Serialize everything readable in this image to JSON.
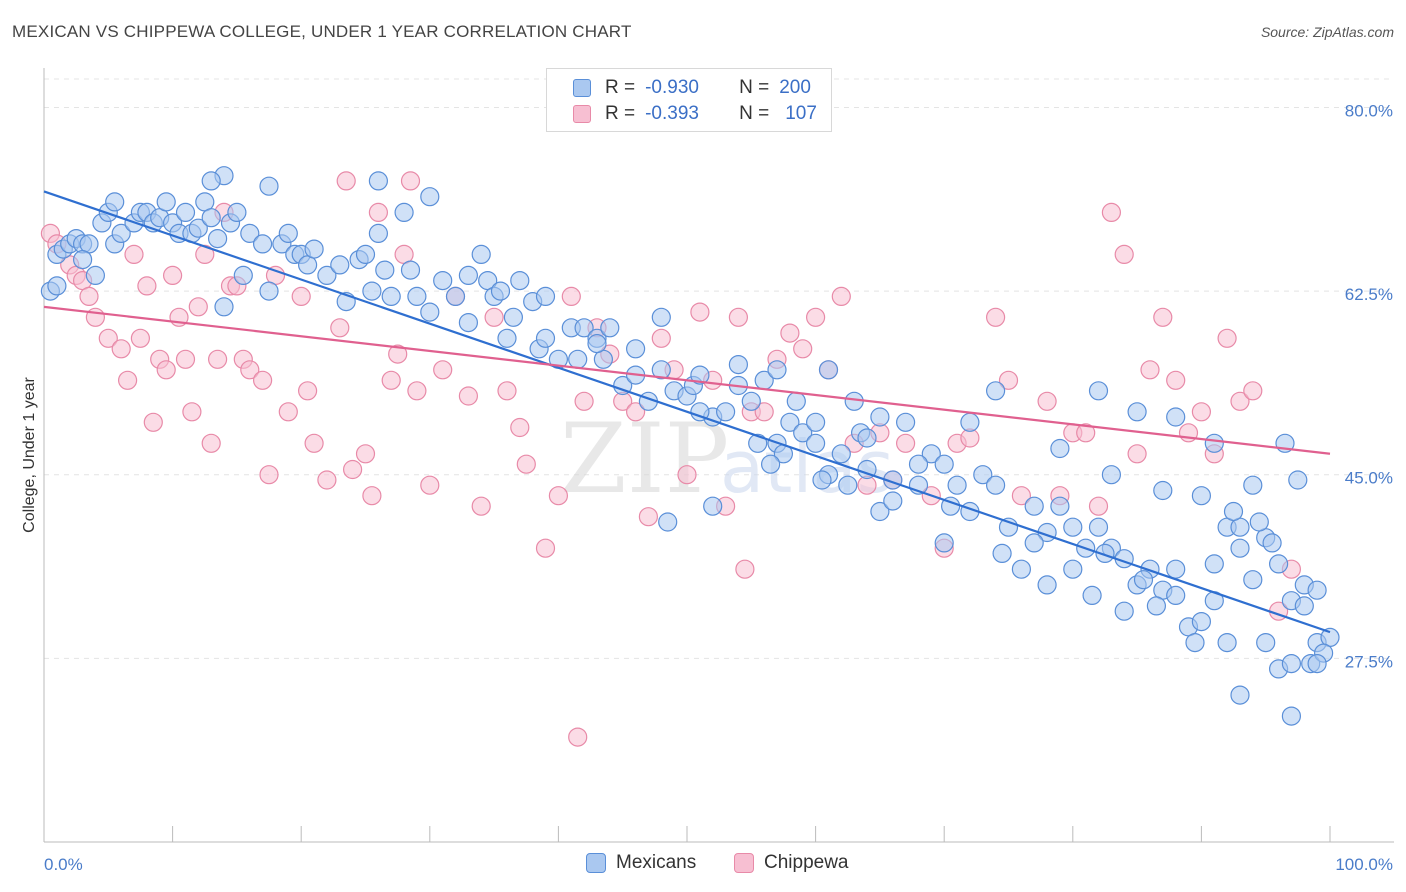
{
  "title": "MEXICAN VS CHIPPEWA COLLEGE, UNDER 1 YEAR CORRELATION CHART",
  "source": "Source: ZipAtlas.com",
  "legend": {
    "rows": [
      {
        "r_label": "R =",
        "r_value": "-0.930",
        "n_label": "N =",
        "n_value": "200"
      },
      {
        "r_label": "R =",
        "r_value": "-0.393",
        "n_label": "N =",
        "n_value": "107"
      }
    ]
  },
  "bottom_legend": [
    "Mexicans",
    "Chippewa"
  ],
  "colors": {
    "blue_fill": "#aac8f0",
    "blue_stroke": "#5a8fd8",
    "blue_line": "#2f6fd0",
    "pink_fill": "#f7bfd2",
    "pink_stroke": "#e88aa8",
    "pink_line": "#e0608f",
    "tick": "#4a7cc9",
    "grid": "#e4e4e4"
  },
  "chart_data": {
    "type": "scatter",
    "title": "MEXICAN VS CHIPPEWA COLLEGE, UNDER 1 YEAR CORRELATION CHART",
    "xlabel": "",
    "ylabel": "College, Under 1 year",
    "xlim": [
      0,
      100
    ],
    "ylim": [
      10,
      83
    ],
    "x_tick_labels": [
      "0.0%",
      "100.0%"
    ],
    "y_ticks": [
      27.5,
      45.0,
      62.5,
      80.0
    ],
    "y_tick_labels": [
      "27.5%",
      "45.0%",
      "62.5%",
      "80.0%"
    ],
    "grid": true,
    "watermark": "ZIPatlas",
    "series": [
      {
        "name": "Mexicans",
        "r": -0.93,
        "n": 200,
        "trend": {
          "x": [
            0,
            100
          ],
          "y": [
            72.0,
            30.0
          ]
        },
        "points": [
          [
            0.5,
            62.5
          ],
          [
            1,
            66
          ],
          [
            1.5,
            66.5
          ],
          [
            2,
            67
          ],
          [
            2.5,
            67.5
          ],
          [
            3,
            67
          ],
          [
            3.5,
            67
          ],
          [
            4,
            64
          ],
          [
            4.5,
            69
          ],
          [
            5,
            70
          ],
          [
            5.5,
            67
          ],
          [
            6,
            68
          ],
          [
            7,
            69
          ],
          [
            7.5,
            70
          ],
          [
            8,
            70
          ],
          [
            8.5,
            69
          ],
          [
            9,
            69.5
          ],
          [
            10,
            69
          ],
          [
            10.5,
            68
          ],
          [
            11,
            70
          ],
          [
            11.5,
            68
          ],
          [
            12,
            68.5
          ],
          [
            12.5,
            71
          ],
          [
            13,
            69.5
          ],
          [
            13.5,
            67.5
          ],
          [
            14,
            73.5
          ],
          [
            14.5,
            69
          ],
          [
            15,
            70
          ],
          [
            15.5,
            64
          ],
          [
            16,
            68
          ],
          [
            17,
            67
          ],
          [
            17.5,
            62.5
          ],
          [
            17.5,
            72.5
          ],
          [
            18.5,
            67
          ],
          [
            19,
            68
          ],
          [
            19.5,
            66
          ],
          [
            20,
            66
          ],
          [
            20.5,
            65
          ],
          [
            21,
            66.5
          ],
          [
            22,
            64
          ],
          [
            23,
            65
          ],
          [
            23.5,
            61.5
          ],
          [
            24.5,
            65.5
          ],
          [
            25,
            66
          ],
          [
            25.5,
            62.5
          ],
          [
            26,
            68
          ],
          [
            26.5,
            64.5
          ],
          [
            27,
            62
          ],
          [
            28,
            70
          ],
          [
            28.5,
            64.5
          ],
          [
            29,
            62
          ],
          [
            30,
            60.5
          ],
          [
            31,
            63.5
          ],
          [
            32,
            62
          ],
          [
            33,
            59.5
          ],
          [
            34,
            66
          ],
          [
            34.5,
            63.5
          ],
          [
            35,
            62
          ],
          [
            35.5,
            62.5
          ],
          [
            36.5,
            60
          ],
          [
            37,
            63.5
          ],
          [
            38,
            61.5
          ],
          [
            38.5,
            57
          ],
          [
            39,
            58
          ],
          [
            40,
            56
          ],
          [
            41,
            59
          ],
          [
            41.5,
            56
          ],
          [
            42,
            59
          ],
          [
            43,
            58
          ],
          [
            43.5,
            56
          ],
          [
            44,
            59
          ],
          [
            45,
            53.5
          ],
          [
            46,
            54.5
          ],
          [
            47,
            52
          ],
          [
            48,
            55
          ],
          [
            49,
            53
          ],
          [
            50,
            52.5
          ],
          [
            50.5,
            53.5
          ],
          [
            51,
            54.5
          ],
          [
            52,
            50.5
          ],
          [
            53,
            51
          ],
          [
            54,
            53.5
          ],
          [
            55,
            52
          ],
          [
            55.5,
            48
          ],
          [
            56,
            54
          ],
          [
            57,
            48
          ],
          [
            57.5,
            47
          ],
          [
            58,
            50
          ],
          [
            58.5,
            52
          ],
          [
            59,
            49
          ],
          [
            60,
            48
          ],
          [
            61,
            45
          ],
          [
            62,
            47
          ],
          [
            63,
            52
          ],
          [
            63.5,
            49
          ],
          [
            64,
            45.5
          ],
          [
            65,
            41.5
          ],
          [
            66,
            44.5
          ],
          [
            67,
            50
          ],
          [
            68,
            44
          ],
          [
            69,
            47
          ],
          [
            70,
            46
          ],
          [
            70.5,
            42
          ],
          [
            71,
            44
          ],
          [
            72,
            41.5
          ],
          [
            73,
            45
          ],
          [
            74,
            44
          ],
          [
            75,
            40
          ],
          [
            76,
            36
          ],
          [
            77,
            42
          ],
          [
            78,
            39.5
          ],
          [
            79,
            42
          ],
          [
            80,
            40
          ],
          [
            81,
            38
          ],
          [
            82,
            40
          ],
          [
            83,
            38
          ],
          [
            84,
            37
          ],
          [
            85,
            34.5
          ],
          [
            86,
            36
          ],
          [
            87,
            34
          ],
          [
            88,
            36
          ],
          [
            89,
            30.5
          ],
          [
            90,
            31
          ],
          [
            91,
            33
          ],
          [
            92,
            40
          ],
          [
            93,
            38
          ],
          [
            94,
            35
          ],
          [
            95,
            39
          ],
          [
            96,
            36.5
          ],
          [
            97,
            33
          ],
          [
            98,
            32.5
          ],
          [
            99,
            29
          ],
          [
            100,
            29.5
          ],
          [
            48.5,
            40.5
          ],
          [
            52,
            42
          ],
          [
            56.5,
            46
          ],
          [
            60.5,
            44.5
          ],
          [
            62.5,
            44
          ],
          [
            66,
            42.5
          ],
          [
            70,
            38.5
          ],
          [
            74.5,
            37.5
          ],
          [
            77,
            38.5
          ],
          [
            78,
            34.5
          ],
          [
            80,
            36
          ],
          [
            81.5,
            33.5
          ],
          [
            82.5,
            37.5
          ],
          [
            84,
            32
          ],
          [
            85.5,
            35
          ],
          [
            86.5,
            32.5
          ],
          [
            88,
            33.5
          ],
          [
            89.5,
            29
          ],
          [
            91,
            36.5
          ],
          [
            93,
            40
          ],
          [
            95,
            29
          ],
          [
            96,
            26.5
          ],
          [
            97,
            27
          ],
          [
            98.5,
            27
          ],
          [
            99.5,
            28
          ],
          [
            82,
            53
          ],
          [
            85,
            51
          ],
          [
            88,
            50.5
          ],
          [
            91,
            48
          ],
          [
            94,
            44
          ],
          [
            96.5,
            48
          ],
          [
            97.5,
            44.5
          ],
          [
            60,
            50
          ],
          [
            68,
            46
          ],
          [
            72,
            50
          ],
          [
            64,
            48.5
          ],
          [
            74,
            53
          ],
          [
            79,
            47.5
          ],
          [
            83,
            45
          ],
          [
            87,
            43.5
          ],
          [
            90,
            43
          ],
          [
            92.5,
            41.5
          ],
          [
            94.5,
            40.5
          ],
          [
            95.5,
            38.5
          ],
          [
            98,
            34.5
          ],
          [
            99,
            27
          ],
          [
            93,
            24
          ],
          [
            97,
            22
          ],
          [
            92,
            29
          ],
          [
            99,
            34
          ],
          [
            1,
            63
          ],
          [
            3,
            65.5
          ],
          [
            5.5,
            71
          ],
          [
            9.5,
            71
          ],
          [
            13,
            73
          ],
          [
            14,
            61
          ],
          [
            26,
            73
          ],
          [
            30,
            71.5
          ],
          [
            33,
            64
          ],
          [
            36,
            58
          ],
          [
            39,
            62
          ],
          [
            43,
            57.5
          ],
          [
            46,
            57
          ],
          [
            48,
            60
          ],
          [
            51,
            51
          ],
          [
            54,
            55.5
          ],
          [
            57,
            55
          ],
          [
            61,
            55
          ],
          [
            65,
            50.5
          ]
        ]
      },
      {
        "name": "Chippewa",
        "r": -0.393,
        "n": 107,
        "trend": {
          "x": [
            0,
            100
          ],
          "y": [
            61.0,
            47.0
          ]
        },
        "points": [
          [
            0.5,
            68
          ],
          [
            1,
            67
          ],
          [
            2,
            65
          ],
          [
            2.5,
            64
          ],
          [
            3,
            63.5
          ],
          [
            3.5,
            62
          ],
          [
            4,
            60
          ],
          [
            5,
            58
          ],
          [
            6,
            57
          ],
          [
            6.5,
            54
          ],
          [
            7,
            66
          ],
          [
            7.5,
            58
          ],
          [
            8,
            63
          ],
          [
            8.5,
            50
          ],
          [
            9,
            56
          ],
          [
            9.5,
            55
          ],
          [
            10,
            64
          ],
          [
            10.5,
            60
          ],
          [
            11,
            56
          ],
          [
            11.5,
            51
          ],
          [
            12,
            61
          ],
          [
            12.5,
            66
          ],
          [
            13,
            48
          ],
          [
            13.5,
            56
          ],
          [
            14,
            70
          ],
          [
            14.5,
            63
          ],
          [
            15,
            63
          ],
          [
            15.5,
            56
          ],
          [
            16,
            55
          ],
          [
            17,
            54
          ],
          [
            17.5,
            45
          ],
          [
            18,
            64
          ],
          [
            19,
            51
          ],
          [
            20,
            62
          ],
          [
            20.5,
            53
          ],
          [
            21,
            48
          ],
          [
            22,
            44.5
          ],
          [
            23,
            59
          ],
          [
            23.5,
            73
          ],
          [
            24,
            45.5
          ],
          [
            25,
            47
          ],
          [
            25.5,
            43
          ],
          [
            26,
            70
          ],
          [
            27,
            54
          ],
          [
            27.5,
            56.5
          ],
          [
            28,
            66
          ],
          [
            28.5,
            73
          ],
          [
            29,
            53
          ],
          [
            30,
            44
          ],
          [
            31,
            55
          ],
          [
            32,
            62
          ],
          [
            33,
            52.5
          ],
          [
            34,
            42
          ],
          [
            35,
            60
          ],
          [
            36,
            53
          ],
          [
            37,
            49.5
          ],
          [
            37.5,
            46
          ],
          [
            39,
            38
          ],
          [
            40,
            43
          ],
          [
            41,
            62
          ],
          [
            41.5,
            20
          ],
          [
            42,
            52
          ],
          [
            43,
            59
          ],
          [
            44,
            56.5
          ],
          [
            45,
            52
          ],
          [
            46,
            51
          ],
          [
            47,
            41
          ],
          [
            48,
            58
          ],
          [
            49,
            55
          ],
          [
            50,
            45
          ],
          [
            51,
            60.5
          ],
          [
            52,
            54
          ],
          [
            53,
            42
          ],
          [
            54,
            60
          ],
          [
            54.5,
            36
          ],
          [
            55,
            51
          ],
          [
            56,
            51
          ],
          [
            57,
            56
          ],
          [
            58,
            58.5
          ],
          [
            59,
            57
          ],
          [
            60,
            60
          ],
          [
            61,
            55
          ],
          [
            62,
            62
          ],
          [
            63,
            48
          ],
          [
            64,
            44
          ],
          [
            65,
            49
          ],
          [
            66,
            44.5
          ],
          [
            67,
            48
          ],
          [
            69,
            43
          ],
          [
            70,
            38
          ],
          [
            71,
            48
          ],
          [
            72,
            48.5
          ],
          [
            74,
            60
          ],
          [
            75,
            54
          ],
          [
            76,
            43
          ],
          [
            78,
            52
          ],
          [
            79,
            43
          ],
          [
            80,
            49
          ],
          [
            81,
            49
          ],
          [
            82,
            42
          ],
          [
            83,
            70
          ],
          [
            84,
            66
          ],
          [
            85,
            47
          ],
          [
            86,
            55
          ],
          [
            87,
            60
          ],
          [
            88,
            54
          ],
          [
            89,
            49
          ],
          [
            90,
            51
          ],
          [
            91,
            47
          ],
          [
            92,
            58
          ],
          [
            93,
            52
          ],
          [
            94,
            53
          ],
          [
            96,
            32
          ],
          [
            97,
            36
          ]
        ]
      }
    ]
  }
}
